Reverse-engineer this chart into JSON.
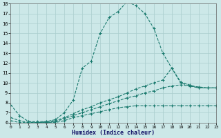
{
  "xlabel": "Humidex (Indice chaleur)",
  "bg_color": "#cce8e8",
  "line_color": "#1a7a6e",
  "grid_color": "#aacece",
  "xlim": [
    0,
    23
  ],
  "ylim": [
    6,
    18
  ],
  "xticks": [
    0,
    1,
    2,
    3,
    4,
    5,
    6,
    7,
    8,
    9,
    10,
    11,
    12,
    13,
    14,
    15,
    16,
    17,
    18,
    19,
    20,
    21,
    22,
    23
  ],
  "yticks": [
    6,
    7,
    8,
    9,
    10,
    11,
    12,
    13,
    14,
    15,
    16,
    17,
    18
  ],
  "series1_x": [
    0,
    1,
    2,
    3,
    4,
    5,
    6,
    7,
    8,
    9,
    10,
    11,
    12,
    13,
    14,
    15,
    16,
    17,
    18,
    19,
    20,
    21,
    22,
    23
  ],
  "series1_y": [
    7.8,
    6.7,
    6.1,
    6.1,
    6.1,
    6.3,
    7.0,
    8.3,
    11.5,
    12.2,
    15.0,
    16.6,
    17.2,
    18.2,
    17.8,
    17.0,
    15.5,
    13.0,
    11.5,
    10.0,
    9.7,
    9.5,
    9.5,
    9.5
  ],
  "series2_x": [
    0,
    1,
    2,
    3,
    4,
    5,
    6,
    7,
    8,
    9,
    10,
    11,
    12,
    13,
    14,
    15,
    16,
    17,
    18,
    19,
    20,
    21,
    22,
    23
  ],
  "series2_y": [
    6.5,
    6.2,
    6.0,
    6.0,
    6.1,
    6.2,
    6.5,
    6.9,
    7.3,
    7.6,
    8.0,
    8.3,
    8.6,
    9.0,
    9.4,
    9.7,
    10.0,
    10.3,
    11.5,
    10.1,
    9.8,
    9.5,
    9.5,
    9.5
  ],
  "series3_x": [
    0,
    1,
    2,
    3,
    4,
    5,
    6,
    7,
    8,
    9,
    10,
    11,
    12,
    13,
    14,
    15,
    16,
    17,
    18,
    19,
    20,
    21,
    22,
    23
  ],
  "series3_y": [
    6.2,
    6.0,
    6.0,
    6.0,
    6.0,
    6.1,
    6.4,
    6.7,
    7.0,
    7.3,
    7.6,
    7.9,
    8.2,
    8.5,
    8.7,
    9.0,
    9.2,
    9.5,
    9.7,
    9.8,
    9.7,
    9.6,
    9.5,
    9.5
  ],
  "series4_x": [
    2,
    3,
    4,
    5,
    6,
    7,
    8,
    9,
    10,
    11,
    12,
    13,
    14,
    15,
    16,
    17,
    18,
    19,
    20,
    21,
    22,
    23
  ],
  "series4_y": [
    6.1,
    6.0,
    6.0,
    6.0,
    6.2,
    6.5,
    6.7,
    6.9,
    7.1,
    7.3,
    7.5,
    7.6,
    7.7,
    7.7,
    7.7,
    7.7,
    7.7,
    7.7,
    7.7,
    7.7,
    7.7,
    7.7
  ]
}
